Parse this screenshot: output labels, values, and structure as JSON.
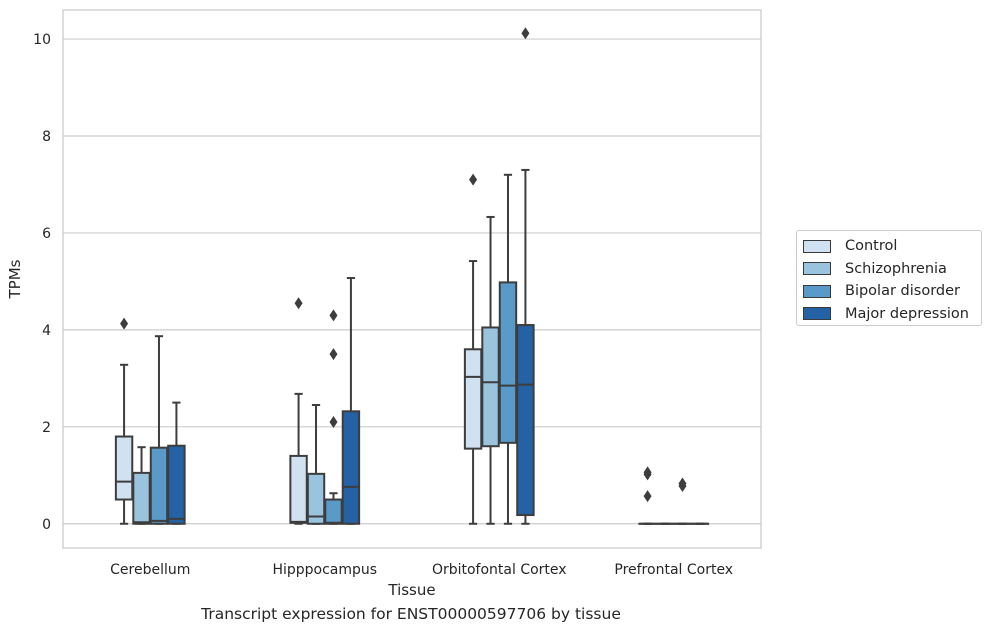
{
  "chart_data": {
    "type": "box",
    "title": "Transcript expression for ENST00000597706 by tissue",
    "xlabel": "Tissue",
    "ylabel": "TPMs",
    "ylim": [
      -0.5,
      10.6
    ],
    "yticks": [
      "0",
      "2",
      "4",
      "6",
      "8",
      "10"
    ],
    "grid": true,
    "legend_position": "right",
    "categories": [
      "Cerebellum",
      "Hipppocampus",
      "Orbitofontal Cortex",
      "Prefrontal Cortex"
    ],
    "series": [
      {
        "name": "Control",
        "color": "#d0e1f1",
        "boxes": [
          {
            "whislo": 0,
            "q1": 0.5,
            "med": 0.87,
            "q3": 1.8,
            "whishi": 3.28,
            "fliers": [
              4.13
            ]
          },
          {
            "whislo": 0,
            "q1": 0.02,
            "med": 0.04,
            "q3": 1.4,
            "whishi": 2.68,
            "fliers": [
              4.55
            ]
          },
          {
            "whislo": 0,
            "q1": 1.55,
            "med": 3.03,
            "q3": 3.6,
            "whishi": 5.42,
            "fliers": [
              7.1
            ]
          },
          {
            "whislo": 0,
            "q1": 0,
            "med": 0,
            "q3": 0,
            "whishi": 0,
            "fliers": [
              0.57,
              1.02,
              1.06
            ]
          }
        ]
      },
      {
        "name": "Schizophrenia",
        "color": "#9ac3de",
        "boxes": [
          {
            "whislo": 0,
            "q1": 0,
            "med": 0.03,
            "q3": 1.05,
            "whishi": 1.58,
            "fliers": []
          },
          {
            "whislo": 0,
            "q1": 0,
            "med": 0.15,
            "q3": 1.03,
            "whishi": 2.45,
            "fliers": []
          },
          {
            "whislo": 0,
            "q1": 1.6,
            "med": 2.92,
            "q3": 4.05,
            "whishi": 6.33,
            "fliers": []
          },
          {
            "whislo": 0,
            "q1": 0,
            "med": 0,
            "q3": 0,
            "whishi": 0,
            "fliers": []
          }
        ]
      },
      {
        "name": "Bipolar disorder",
        "color": "#5a9ac9",
        "boxes": [
          {
            "whislo": 0,
            "q1": 0,
            "med": 0.06,
            "q3": 1.57,
            "whishi": 3.87,
            "fliers": []
          },
          {
            "whislo": 0,
            "q1": 0,
            "med": 0.02,
            "q3": 0.5,
            "whishi": 0.63,
            "fliers": [
              2.1,
              3.5,
              4.3
            ]
          },
          {
            "whislo": 0,
            "q1": 1.67,
            "med": 2.85,
            "q3": 4.98,
            "whishi": 7.2,
            "fliers": []
          },
          {
            "whislo": 0,
            "q1": 0,
            "med": 0,
            "q3": 0,
            "whishi": 0,
            "fliers": [
              0.78,
              0.83
            ]
          }
        ]
      },
      {
        "name": "Major depression",
        "color": "#2462a5",
        "boxes": [
          {
            "whislo": 0,
            "q1": 0,
            "med": 0.1,
            "q3": 1.61,
            "whishi": 2.5,
            "fliers": []
          },
          {
            "whislo": 0,
            "q1": 0,
            "med": 0.76,
            "q3": 2.32,
            "whishi": 5.07,
            "fliers": []
          },
          {
            "whislo": 0,
            "q1": 0.18,
            "med": 2.87,
            "q3": 4.1,
            "whishi": 7.3,
            "fliers": [
              10.12
            ]
          },
          {
            "whislo": 0,
            "q1": 0,
            "med": 0,
            "q3": 0,
            "whishi": 0,
            "fliers": []
          }
        ]
      }
    ]
  }
}
